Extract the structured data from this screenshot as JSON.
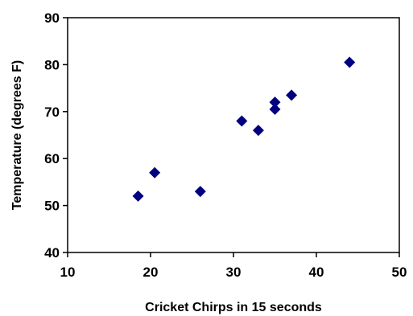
{
  "chart_data": {
    "type": "scatter",
    "title": "",
    "xlabel": "Cricket Chirps in 15 seconds",
    "ylabel": "Temperature (degrees F)",
    "xlim": [
      10,
      50
    ],
    "ylim": [
      40,
      90
    ],
    "xticks": [
      10,
      20,
      30,
      40,
      50
    ],
    "yticks": [
      40,
      50,
      60,
      70,
      80,
      90
    ],
    "grid": false,
    "legend": "none",
    "marker": "diamond",
    "marker_color": "#000080",
    "series": [
      {
        "points": [
          {
            "x": 18.5,
            "y": 52
          },
          {
            "x": 20.5,
            "y": 57
          },
          {
            "x": 26,
            "y": 53
          },
          {
            "x": 31,
            "y": 68
          },
          {
            "x": 33,
            "y": 66
          },
          {
            "x": 35,
            "y": 72
          },
          {
            "x": 35,
            "y": 70.5
          },
          {
            "x": 37,
            "y": 73.5
          },
          {
            "x": 44,
            "y": 80.5
          }
        ]
      }
    ]
  }
}
